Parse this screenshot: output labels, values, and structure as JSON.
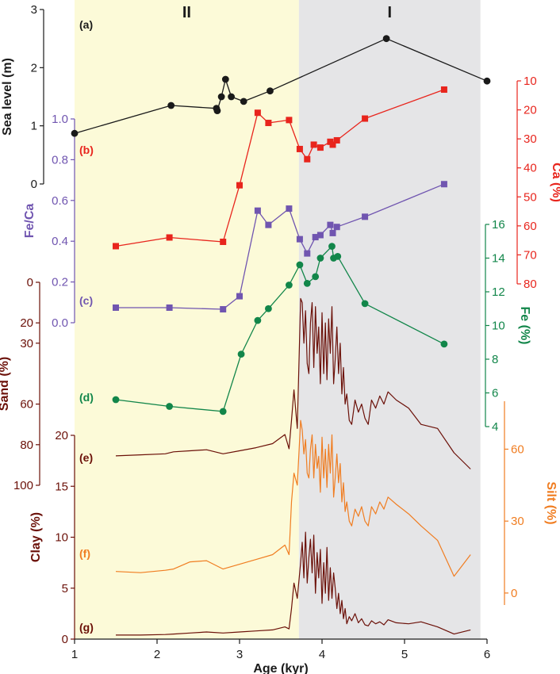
{
  "chart_data": {
    "type": "line",
    "x_axis": {
      "label": "Age (kyr)",
      "range": [
        1,
        6
      ],
      "ticks": [
        "1",
        "2",
        "3",
        "4",
        "5",
        "6"
      ]
    },
    "zones": [
      {
        "label": "II",
        "from": 1,
        "to": 3.72,
        "color": "#fcfad8"
      },
      {
        "label": "I",
        "from": 3.72,
        "to": 5.92,
        "color": "#e5e5e7"
      }
    ],
    "panels": [
      {
        "id": "a",
        "label": "(a)",
        "axis_title": "Sea level (m)",
        "color": "#1a1a1a",
        "marker": "circle",
        "axis_range": [
          0,
          3
        ],
        "ticks": [
          0,
          1,
          2,
          3
        ],
        "tick_labels": [
          "0",
          "1",
          "2",
          "3"
        ],
        "x": [
          1.0,
          2.17,
          2.72,
          2.73,
          2.78,
          2.83,
          2.9,
          3.05,
          3.37,
          4.78,
          6.0
        ],
        "y": [
          0.87,
          1.35,
          1.3,
          1.26,
          1.5,
          1.8,
          1.5,
          1.42,
          1.6,
          2.5,
          1.77
        ]
      },
      {
        "id": "b",
        "label": "(b)",
        "axis_title": "Ca (%)",
        "color": "#e8251d",
        "marker": "square",
        "axis_range": [
          10,
          80
        ],
        "inverted": true,
        "ticks": [
          10,
          20,
          30,
          40,
          50,
          60,
          70,
          80
        ],
        "tick_labels": [
          "10",
          "20",
          "30",
          "40",
          "50",
          "60",
          "70",
          "80"
        ],
        "x": [
          1.5,
          2.15,
          2.8,
          3.0,
          3.22,
          3.35,
          3.6,
          3.73,
          3.82,
          3.9,
          3.98,
          4.1,
          4.13,
          4.18,
          4.52,
          5.48
        ],
        "y": [
          67,
          64,
          65.5,
          46,
          21,
          24.5,
          23.5,
          33.5,
          37,
          32,
          33,
          31,
          32,
          30.5,
          23,
          13
        ]
      },
      {
        "id": "c",
        "label": "(c)",
        "axis_title": "Fe/Ca",
        "color": "#7055b0",
        "marker": "square",
        "axis_range": [
          0,
          1.0
        ],
        "ticks": [
          0,
          0.2,
          0.4,
          0.6,
          0.8,
          1.0
        ],
        "tick_labels": [
          "0.0",
          "0.2",
          "0.4",
          "0.6",
          "0.8",
          "1.0"
        ],
        "x": [
          1.5,
          2.15,
          2.8,
          3.0,
          3.22,
          3.35,
          3.6,
          3.73,
          3.82,
          3.92,
          3.98,
          4.1,
          4.13,
          4.18,
          4.52,
          5.48
        ],
        "y": [
          0.074,
          0.074,
          0.066,
          0.13,
          0.55,
          0.48,
          0.56,
          0.41,
          0.34,
          0.42,
          0.43,
          0.48,
          0.44,
          0.47,
          0.52,
          0.68
        ]
      },
      {
        "id": "d",
        "label": "(d)",
        "axis_title": "Fe (%)",
        "color": "#12864a",
        "marker": "circle",
        "axis_range": [
          4,
          16
        ],
        "ticks": [
          4,
          6,
          8,
          10,
          12,
          14,
          16
        ],
        "tick_labels": [
          "4",
          "6",
          "8",
          "10",
          "12",
          "14",
          "16"
        ],
        "x": [
          1.5,
          2.15,
          2.8,
          3.02,
          3.22,
          3.35,
          3.6,
          3.73,
          3.82,
          3.92,
          3.98,
          4.12,
          4.14,
          4.19,
          4.52,
          5.48
        ],
        "y": [
          5.6,
          5.2,
          4.9,
          8.3,
          10.3,
          11.0,
          12.4,
          13.6,
          12.5,
          12.9,
          14.0,
          14.7,
          14.0,
          14.1,
          11.3,
          8.9
        ]
      },
      {
        "id": "e",
        "label": "(e)",
        "axis_title": "Sand (%)",
        "color": "#6b1008",
        "marker": "none",
        "axis_range": [
          0,
          100
        ],
        "inverted": true,
        "ticks": [
          0,
          20,
          30,
          60,
          80,
          100
        ],
        "tick_labels": [
          "0",
          "20",
          "30",
          "60",
          "80",
          "100"
        ],
        "x": [
          1.5,
          1.8,
          2.1,
          2.2,
          2.4,
          2.6,
          2.8,
          3.0,
          3.2,
          3.4,
          3.55,
          3.6,
          3.63,
          3.66,
          3.7,
          3.74,
          3.76,
          3.78,
          3.8,
          3.82,
          3.84,
          3.86,
          3.88,
          3.9,
          3.92,
          3.94,
          3.96,
          3.98,
          4.0,
          4.02,
          4.04,
          4.06,
          4.08,
          4.1,
          4.12,
          4.14,
          4.16,
          4.18,
          4.2,
          4.22,
          4.24,
          4.26,
          4.28,
          4.3,
          4.33,
          4.36,
          4.4,
          4.44,
          4.48,
          4.52,
          4.56,
          4.6,
          4.65,
          4.7,
          4.75,
          4.8,
          4.9,
          5.05,
          5.2,
          5.4,
          5.6,
          5.8
        ],
        "y": [
          85.5,
          85,
          84.5,
          83.5,
          83,
          82.5,
          84.5,
          83,
          81.5,
          79.5,
          75,
          82,
          68,
          53,
          72,
          8,
          10,
          30,
          14,
          40,
          45,
          20,
          10,
          42,
          12,
          35,
          22,
          50,
          15,
          45,
          20,
          48,
          18,
          35,
          12,
          50,
          38,
          22,
          45,
          30,
          55,
          42,
          60,
          55,
          68,
          70,
          58,
          64,
          60,
          67,
          70,
          58,
          62,
          56,
          60,
          54,
          58,
          62,
          70,
          72,
          84,
          92
        ]
      },
      {
        "id": "f",
        "label": "(f)",
        "axis_title": "Silt (%)",
        "color": "#f07d21",
        "marker": "none",
        "axis_range": [
          -5,
          80
        ],
        "ticks": [
          0,
          30,
          60
        ],
        "tick_labels": [
          "0",
          "30",
          "60"
        ],
        "x": [
          1.5,
          1.8,
          2.1,
          2.2,
          2.4,
          2.6,
          2.8,
          3.0,
          3.2,
          3.4,
          3.55,
          3.6,
          3.63,
          3.66,
          3.7,
          3.74,
          3.76,
          3.78,
          3.8,
          3.82,
          3.84,
          3.86,
          3.88,
          3.9,
          3.92,
          3.94,
          3.96,
          3.98,
          4.0,
          4.02,
          4.04,
          4.06,
          4.08,
          4.1,
          4.12,
          4.14,
          4.16,
          4.18,
          4.2,
          4.22,
          4.24,
          4.26,
          4.28,
          4.3,
          4.33,
          4.36,
          4.4,
          4.44,
          4.48,
          4.52,
          4.56,
          4.6,
          4.65,
          4.7,
          4.75,
          4.8,
          4.9,
          5.05,
          5.2,
          5.4,
          5.6,
          5.8
        ],
        "y": [
          9,
          8.5,
          9.5,
          10,
          13,
          13.5,
          10,
          12,
          14,
          16,
          20,
          16,
          38,
          50,
          45,
          72,
          68,
          58,
          64,
          50,
          48,
          60,
          66,
          48,
          62,
          52,
          57,
          42,
          65,
          48,
          60,
          44,
          62,
          50,
          66,
          40,
          48,
          58,
          46,
          54,
          38,
          46,
          34,
          38,
          30,
          28,
          35,
          32,
          36,
          30,
          28,
          36,
          33,
          38,
          35,
          40,
          37,
          33,
          28,
          22,
          7,
          16
        ]
      },
      {
        "id": "g",
        "label": "(g)",
        "axis_title": "Clay (%)",
        "color": "#6b1008",
        "marker": "none",
        "axis_range": [
          0,
          20
        ],
        "ticks": [
          0,
          5,
          10,
          15,
          20
        ],
        "tick_labels": [
          "0",
          "5",
          "10",
          "15",
          "20"
        ],
        "x": [
          1.5,
          1.8,
          2.1,
          2.2,
          2.4,
          2.6,
          2.8,
          3.0,
          3.2,
          3.4,
          3.55,
          3.6,
          3.63,
          3.66,
          3.7,
          3.74,
          3.76,
          3.78,
          3.8,
          3.82,
          3.84,
          3.86,
          3.88,
          3.9,
          3.92,
          3.94,
          3.96,
          3.98,
          4.0,
          4.02,
          4.04,
          4.06,
          4.08,
          4.1,
          4.12,
          4.14,
          4.16,
          4.18,
          4.2,
          4.22,
          4.24,
          4.26,
          4.28,
          4.3,
          4.33,
          4.36,
          4.4,
          4.44,
          4.48,
          4.52,
          4.56,
          4.6,
          4.65,
          4.7,
          4.75,
          4.8,
          4.9,
          5.05,
          5.2,
          5.4,
          5.6,
          5.8
        ],
        "y": [
          0.4,
          0.4,
          0.45,
          0.5,
          0.6,
          0.7,
          0.6,
          0.7,
          0.8,
          0.9,
          1.2,
          1.0,
          3.0,
          5.5,
          4.0,
          7.5,
          9.5,
          6.0,
          10.5,
          5.5,
          8.0,
          9.8,
          6.5,
          10.2,
          4.5,
          8.5,
          6.0,
          8.8,
          3.5,
          7.5,
          4.5,
          9.0,
          3.8,
          7.0,
          4.0,
          6.5,
          5.0,
          3.0,
          4.5,
          2.5,
          3.8,
          2.0,
          3.0,
          1.5,
          2.2,
          1.8,
          2.5,
          1.6,
          2.0,
          1.4,
          1.3,
          1.8,
          1.5,
          1.7,
          1.4,
          1.9,
          1.6,
          1.5,
          1.7,
          1.2,
          0.5,
          0.9
        ]
      }
    ]
  }
}
